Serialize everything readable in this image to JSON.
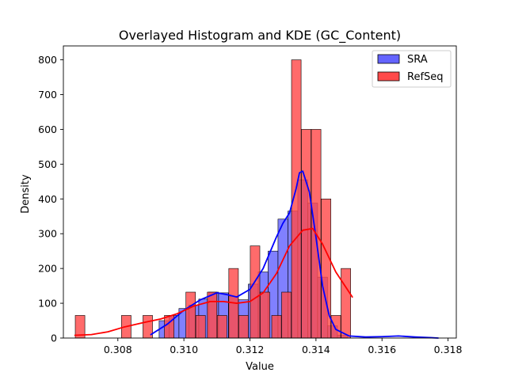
{
  "chart_data": {
    "type": "bar",
    "title": "Overlayed Histogram and KDE (GC_Content)",
    "xlabel": "Value",
    "ylabel": "Density",
    "xlim": [
      0.30635,
      0.31825
    ],
    "ylim": [
      0,
      840
    ],
    "xticks": [
      0.308,
      0.31,
      0.312,
      0.314,
      0.316,
      0.318
    ],
    "xtick_labels": [
      "0.308",
      "0.310",
      "0.312",
      "0.314",
      "0.316",
      "0.318"
    ],
    "yticks": [
      0,
      100,
      200,
      300,
      400,
      500,
      600,
      700,
      800
    ],
    "ytick_labels": [
      "0",
      "100",
      "200",
      "300",
      "400",
      "500",
      "600",
      "700",
      "800"
    ],
    "legend_position": "top-right",
    "grid": false,
    "series": [
      {
        "name": "SRA",
        "kind": "histogram",
        "color": "#0000ff",
        "fill": "#6464ff",
        "bins": [
          {
            "x0": 0.30925,
            "x1": 0.30955,
            "y": 50
          },
          {
            "x0": 0.30955,
            "x1": 0.30985,
            "y": 65
          },
          {
            "x0": 0.30985,
            "x1": 0.31015,
            "y": 85
          },
          {
            "x0": 0.31015,
            "x1": 0.31045,
            "y": 95
          },
          {
            "x0": 0.31045,
            "x1": 0.31075,
            "y": 112
          },
          {
            "x0": 0.31075,
            "x1": 0.31105,
            "y": 132
          },
          {
            "x0": 0.31105,
            "x1": 0.31135,
            "y": 130
          },
          {
            "x0": 0.31135,
            "x1": 0.31165,
            "y": 120
          },
          {
            "x0": 0.31165,
            "x1": 0.31195,
            "y": 110
          },
          {
            "x0": 0.31195,
            "x1": 0.31225,
            "y": 155
          },
          {
            "x0": 0.31225,
            "x1": 0.31255,
            "y": 190
          },
          {
            "x0": 0.31255,
            "x1": 0.31285,
            "y": 250
          },
          {
            "x0": 0.31285,
            "x1": 0.31315,
            "y": 342
          },
          {
            "x0": 0.31315,
            "x1": 0.31345,
            "y": 365
          },
          {
            "x0": 0.31345,
            "x1": 0.31375,
            "y": 455
          },
          {
            "x0": 0.31375,
            "x1": 0.31405,
            "y": 388
          },
          {
            "x0": 0.31405,
            "x1": 0.31435,
            "y": 175
          },
          {
            "x0": 0.31435,
            "x1": 0.31465,
            "y": 35
          },
          {
            "x0": 0.31465,
            "x1": 0.31495,
            "y": 8
          }
        ]
      },
      {
        "name": "RefSeq",
        "kind": "histogram",
        "color": "#ff0000",
        "fill": "#ff4a4a",
        "bins": [
          {
            "x0": 0.30671,
            "x1": 0.307,
            "y": 65
          },
          {
            "x0": 0.30811,
            "x1": 0.3084,
            "y": 65
          },
          {
            "x0": 0.30876,
            "x1": 0.30905,
            "y": 65
          },
          {
            "x0": 0.30941,
            "x1": 0.3097,
            "y": 65
          },
          {
            "x0": 0.31006,
            "x1": 0.31035,
            "y": 132
          },
          {
            "x0": 0.31036,
            "x1": 0.31065,
            "y": 65
          },
          {
            "x0": 0.31071,
            "x1": 0.311,
            "y": 132
          },
          {
            "x0": 0.31101,
            "x1": 0.3113,
            "y": 65
          },
          {
            "x0": 0.31136,
            "x1": 0.31165,
            "y": 200
          },
          {
            "x0": 0.31166,
            "x1": 0.31195,
            "y": 65
          },
          {
            "x0": 0.31201,
            "x1": 0.3123,
            "y": 265
          },
          {
            "x0": 0.31231,
            "x1": 0.3126,
            "y": 132
          },
          {
            "x0": 0.31266,
            "x1": 0.31295,
            "y": 65
          },
          {
            "x0": 0.31296,
            "x1": 0.31325,
            "y": 132
          },
          {
            "x0": 0.31326,
            "x1": 0.31355,
            "y": 800
          },
          {
            "x0": 0.31356,
            "x1": 0.31385,
            "y": 600
          },
          {
            "x0": 0.31386,
            "x1": 0.31415,
            "y": 600
          },
          {
            "x0": 0.31416,
            "x1": 0.31445,
            "y": 400
          },
          {
            "x0": 0.31446,
            "x1": 0.31475,
            "y": 65
          },
          {
            "x0": 0.31476,
            "x1": 0.31505,
            "y": 200
          }
        ]
      },
      {
        "name": "SRA KDE",
        "kind": "kde",
        "color": "#0000ff",
        "x": [
          0.309,
          0.3095,
          0.31,
          0.3105,
          0.311,
          0.3113,
          0.3116,
          0.312,
          0.3124,
          0.3128,
          0.313,
          0.3132,
          0.3134,
          0.3135,
          0.3136,
          0.3138,
          0.314,
          0.3142,
          0.3144,
          0.3146,
          0.315,
          0.3155,
          0.316,
          0.3165,
          0.317,
          0.3175,
          0.3177
        ],
        "y": [
          10,
          40,
          80,
          110,
          130,
          125,
          118,
          140,
          200,
          290,
          330,
          360,
          430,
          475,
          480,
          420,
          290,
          150,
          65,
          25,
          6,
          3,
          4,
          6,
          3,
          1,
          0
        ]
      },
      {
        "name": "RefSeq KDE",
        "kind": "kde",
        "color": "#ff0000",
        "x": [
          0.3067,
          0.3072,
          0.3077,
          0.3082,
          0.3088,
          0.3093,
          0.3098,
          0.3103,
          0.3108,
          0.3112,
          0.3116,
          0.312,
          0.3124,
          0.3128,
          0.3132,
          0.3136,
          0.3139,
          0.3142,
          0.3146,
          0.3151
        ],
        "y": [
          8,
          10,
          18,
          32,
          45,
          55,
          70,
          92,
          105,
          105,
          100,
          105,
          130,
          185,
          265,
          310,
          315,
          270,
          190,
          118
        ]
      }
    ]
  }
}
